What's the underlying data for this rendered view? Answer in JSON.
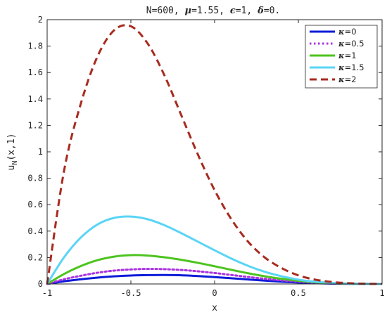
{
  "chart_data": {
    "type": "line",
    "title_parts": {
      "n": "N=600,",
      "mu_sym": "μ",
      "mu_val": "=1.55,",
      "eps_sym": "ϵ",
      "eps_val": "=1,",
      "delta_sym": "δ",
      "delta_val": "=0."
    },
    "xlabel": "x",
    "ylabel": {
      "base": "u",
      "sub": "N",
      "rest": "(x,1)"
    },
    "xlim": [
      -1,
      1
    ],
    "ylim": [
      0,
      2
    ],
    "xticks": [
      -1,
      -0.5,
      0,
      0.5,
      1
    ],
    "xtick_labels": [
      "-1",
      "-0.5",
      "0",
      "0.5",
      "1"
    ],
    "yticks": [
      0,
      0.2,
      0.4,
      0.6,
      0.8,
      1,
      1.2,
      1.4,
      1.6,
      1.8,
      2
    ],
    "ytick_labels": [
      "0",
      "0.2",
      "0.4",
      "0.6",
      "0.8",
      "1",
      "1.2",
      "1.4",
      "1.6",
      "1.8",
      "2"
    ],
    "grid": false,
    "legend_position": "top-right",
    "x": [
      -1,
      -0.9,
      -0.8,
      -0.7,
      -0.6,
      -0.5,
      -0.4,
      -0.3,
      -0.2,
      -0.1,
      0,
      0.1,
      0.2,
      0.3,
      0.4,
      0.5,
      0.6,
      0.7,
      0.8,
      0.9,
      1
    ],
    "series": [
      {
        "name": "κ=0",
        "legend_sym": "κ",
        "legend_val": "=0",
        "color": "#0b1bd8",
        "dash": "solid",
        "values": [
          0,
          0.02,
          0.035,
          0.048,
          0.058,
          0.064,
          0.067,
          0.068,
          0.066,
          0.06,
          0.052,
          0.043,
          0.034,
          0.025,
          0.017,
          0.011,
          0.006,
          0.003,
          0.001,
          0.0004,
          0
        ]
      },
      {
        "name": "κ=0.5",
        "legend_sym": "κ",
        "legend_val": "=0.5",
        "color": "#a933e0",
        "dash": "dotted",
        "values": [
          0,
          0.035,
          0.062,
          0.085,
          0.101,
          0.11,
          0.114,
          0.112,
          0.106,
          0.096,
          0.083,
          0.068,
          0.053,
          0.039,
          0.027,
          0.017,
          0.01,
          0.005,
          0.002,
          0.0005,
          0
        ]
      },
      {
        "name": "κ=1",
        "legend_sym": "κ",
        "legend_val": "=1",
        "color": "#4dc41f",
        "dash": "solid",
        "values": [
          0,
          0.075,
          0.135,
          0.18,
          0.207,
          0.218,
          0.215,
          0.202,
          0.183,
          0.16,
          0.134,
          0.107,
          0.081,
          0.058,
          0.039,
          0.024,
          0.013,
          0.006,
          0.002,
          0.0005,
          0
        ]
      },
      {
        "name": "κ=1.5",
        "legend_sym": "κ",
        "legend_val": "=1.5",
        "color": "#5ad5f5",
        "dash": "solid",
        "values": [
          0,
          0.2,
          0.35,
          0.45,
          0.5,
          0.51,
          0.49,
          0.445,
          0.385,
          0.32,
          0.255,
          0.192,
          0.137,
          0.092,
          0.058,
          0.033,
          0.017,
          0.008,
          0.003,
          0.0007,
          0
        ]
      },
      {
        "name": "κ=2",
        "legend_sym": "κ",
        "legend_val": "=2",
        "color": "#a72b1f",
        "dash": "dashed",
        "values": [
          0,
          0.85,
          1.36,
          1.72,
          1.92,
          1.95,
          1.82,
          1.58,
          1.28,
          0.98,
          0.71,
          0.49,
          0.32,
          0.2,
          0.12,
          0.065,
          0.033,
          0.015,
          0.006,
          0.0015,
          0
        ]
      }
    ]
  }
}
